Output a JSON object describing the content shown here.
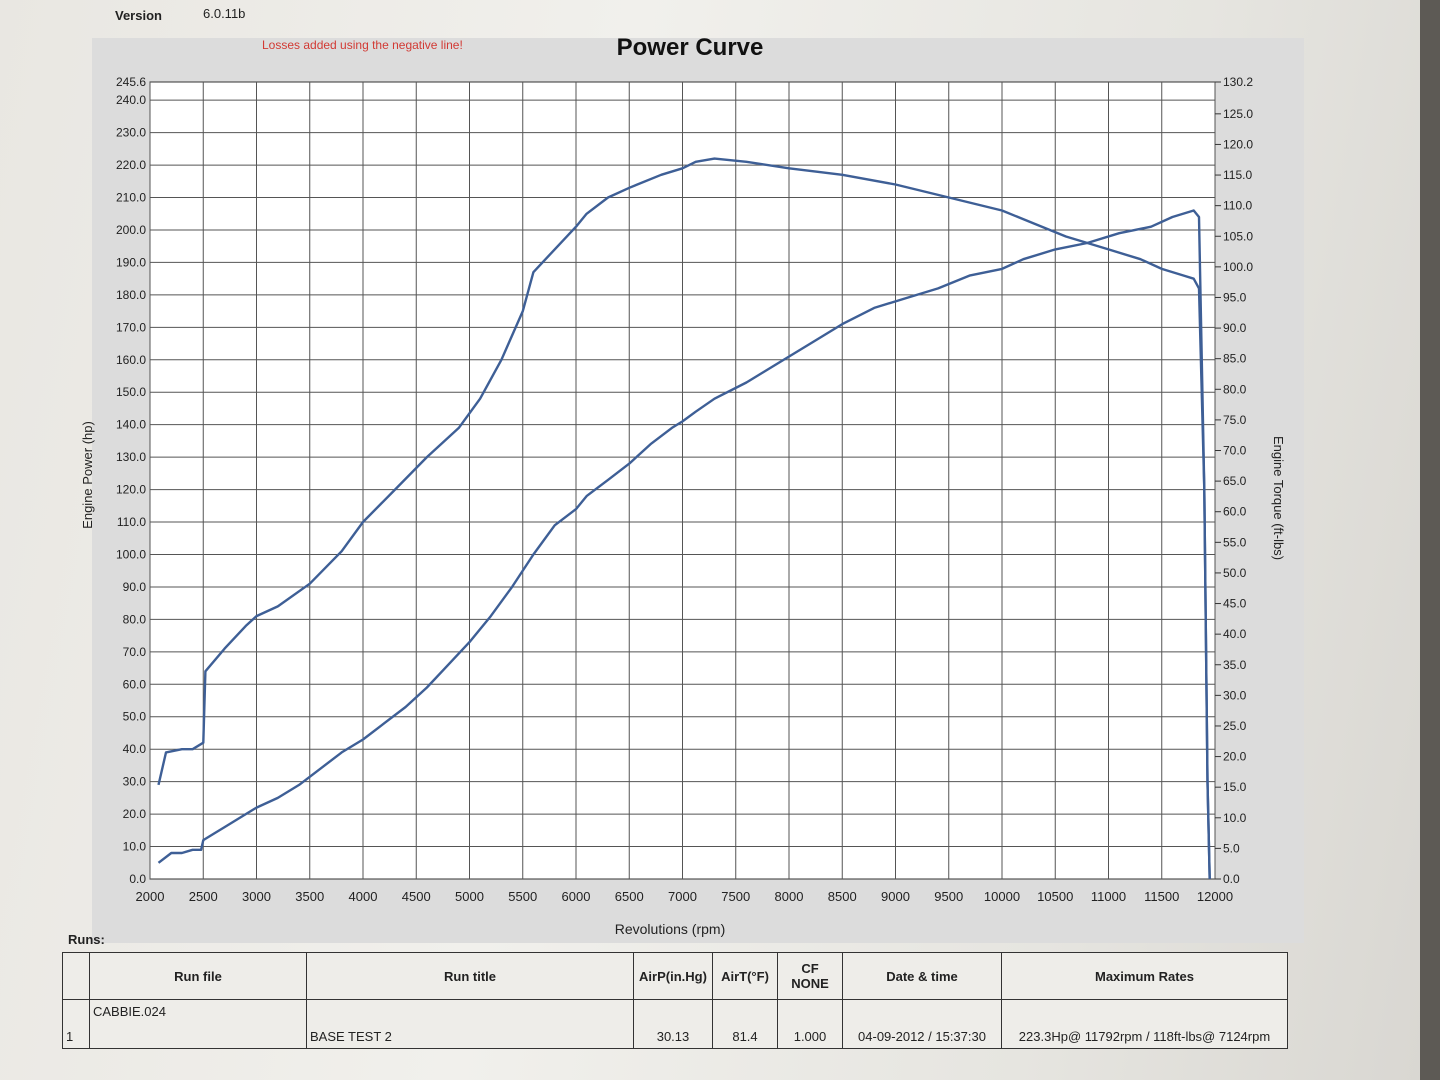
{
  "header": {
    "version_label": "Version",
    "version_value": "6.0.11b",
    "losses_note": "Losses added using the negative line!"
  },
  "chart_data": {
    "type": "line",
    "title": "Power Curve",
    "xlabel": "Revolutions (rpm)",
    "ylabel": "Engine Power (hp)",
    "y2label": "Engine Torque (ft-lbs)",
    "xlim": [
      2000,
      12000
    ],
    "ylim": [
      0,
      245.6
    ],
    "y2lim": [
      0,
      130.2
    ],
    "x_ticks": [
      "2000",
      "2500",
      "3000",
      "3500",
      "4000",
      "4500",
      "5000",
      "5500",
      "6000",
      "6500",
      "7000",
      "7500",
      "8000",
      "8500",
      "9000",
      "9500",
      "10000",
      "10500",
      "11000",
      "11500",
      "12000"
    ],
    "y_ticks": [
      "0.0",
      "10.0",
      "20.0",
      "30.0",
      "40.0",
      "50.0",
      "60.0",
      "70.0",
      "80.0",
      "90.0",
      "100.0",
      "110.0",
      "120.0",
      "130.0",
      "140.0",
      "150.0",
      "160.0",
      "170.0",
      "180.0",
      "190.0",
      "200.0",
      "210.0",
      "220.0",
      "230.0",
      "240.0",
      "245.6"
    ],
    "y2_ticks": [
      "0.0",
      "5.0",
      "10.0",
      "15.0",
      "20.0",
      "25.0",
      "30.0",
      "35.0",
      "40.0",
      "45.0",
      "50.0",
      "55.0",
      "60.0",
      "65.0",
      "70.0",
      "75.0",
      "80.0",
      "85.0",
      "90.0",
      "95.0",
      "100.0",
      "105.0",
      "110.0",
      "115.0",
      "120.0",
      "125.0",
      "130.2"
    ],
    "grid": true,
    "line_color": "#3e5f96",
    "series": [
      {
        "axis": "left",
        "x": [
          2080,
          2200,
          2300,
          2400,
          2480,
          2500,
          2600,
          2700,
          2800,
          2900,
          3000,
          3200,
          3400,
          3600,
          3800,
          4000,
          4200,
          4400,
          4600,
          4800,
          5000,
          5200,
          5400,
          5600,
          5800,
          6000,
          6100,
          6300,
          6500,
          6700,
          6900,
          7000,
          7124,
          7300,
          7600,
          7900,
          8200,
          8500,
          8800,
          9100,
          9400,
          9700,
          10000,
          10200,
          10500,
          10800,
          11100,
          11400,
          11600,
          11800,
          11850,
          11900,
          11930,
          11950
        ],
        "y": [
          5,
          8,
          8,
          9,
          9,
          12,
          14,
          16,
          18,
          20,
          22,
          25,
          29,
          34,
          39,
          43,
          48,
          53,
          59,
          66,
          73,
          81,
          90,
          100,
          109,
          114,
          118,
          123,
          128,
          134,
          139,
          141,
          144,
          148,
          153,
          159,
          165,
          171,
          176,
          179,
          182,
          186,
          188,
          191,
          194,
          196,
          199,
          201,
          204,
          206,
          204,
          120,
          30,
          0
        ]
      },
      {
        "axis": "left",
        "x": [
          2080,
          2150,
          2300,
          2400,
          2500,
          2520,
          2700,
          2900,
          3000,
          3200,
          3500,
          3800,
          4000,
          4300,
          4600,
          4900,
          5100,
          5300,
          5500,
          5600,
          5800,
          6000,
          6100,
          6300,
          6500,
          6800,
          7000,
          7124,
          7300,
          7600,
          8000,
          8500,
          9000,
          9500,
          10000,
          10300,
          10600,
          11000,
          11300,
          11500,
          11700,
          11800,
          11850,
          11900,
          11930,
          11950
        ],
        "y": [
          29,
          39,
          40,
          40,
          42,
          64,
          71,
          78,
          81,
          84,
          91,
          101,
          110,
          120,
          130,
          139,
          148,
          160,
          175,
          187,
          194,
          201,
          205,
          210,
          213,
          217,
          219,
          221,
          222,
          221,
          219,
          217,
          214,
          210,
          206,
          202,
          198,
          194,
          191,
          188,
          186,
          185,
          182,
          120,
          30,
          0
        ]
      }
    ]
  },
  "runs": {
    "label": "Runs:",
    "headers": [
      "Run file",
      "Run title",
      "AirP(in.Hg)",
      "AirT(°F)",
      "CF NONE",
      "Date & time",
      "Maximum Rates"
    ],
    "row": {
      "index": "1",
      "run_file": "CABBIE.024",
      "run_title": "BASE TEST 2",
      "air_p": "30.13",
      "air_t": "81.4",
      "cf": "1.000",
      "date_time": "04-09-2012 / 15:37:30",
      "max_rates": "223.3Hp@ 11792rpm / 118ft-lbs@ 7124rpm"
    }
  }
}
